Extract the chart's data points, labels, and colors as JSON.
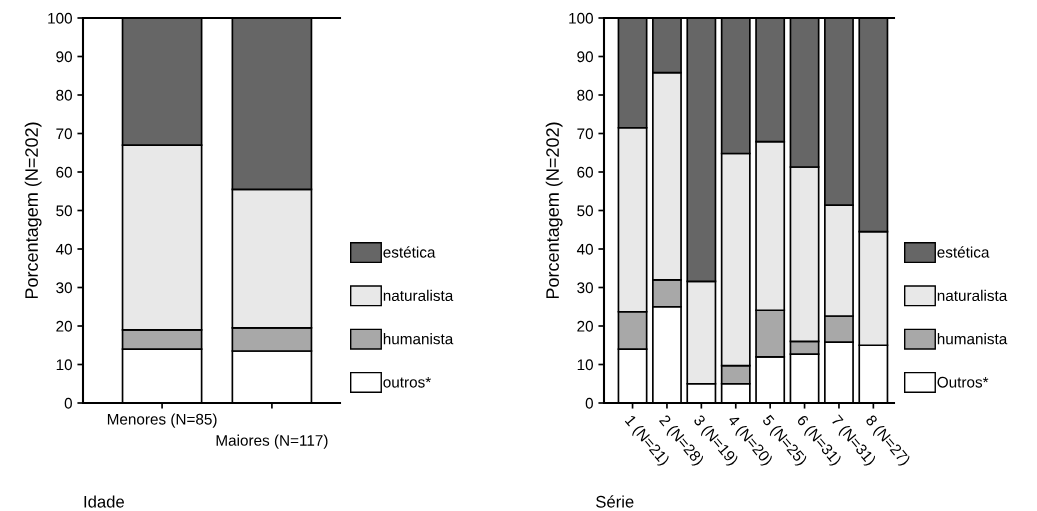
{
  "chart_data": [
    {
      "type": "bar",
      "stacked": true,
      "xlabel": "Idade",
      "ylabel": "Porcentagem (N=202)",
      "categories": [
        "Menores (N=85)",
        "Maiores (N=117)"
      ],
      "ylim": [
        0,
        100
      ],
      "yticks": [
        0,
        10,
        20,
        30,
        40,
        50,
        60,
        70,
        80,
        90,
        100
      ],
      "grid": false,
      "legend": "right",
      "series": [
        {
          "name": "outros*",
          "color": "#ffffff",
          "values": [
            14,
            13.5
          ]
        },
        {
          "name": "humanista",
          "color": "#a8a8a8",
          "values": [
            5,
            6
          ]
        },
        {
          "name": "naturalista",
          "color": "#e8e8e8",
          "values": [
            48,
            36
          ]
        },
        {
          "name": "estética",
          "color": "#666666",
          "values": [
            33,
            44.5
          ]
        }
      ]
    },
    {
      "type": "bar",
      "stacked": true,
      "xlabel": "Série",
      "ylabel": "Porcentagem (N=202)",
      "categories": [
        "1 (N=21)",
        "2 (N=28)",
        "3 (N=19)",
        "4 (N=20)",
        "5 (N=25)",
        "6 (N=31)",
        "7 (N=31)",
        "8 (N=27)"
      ],
      "ylim": [
        0,
        100
      ],
      "yticks": [
        0,
        10,
        20,
        30,
        40,
        50,
        60,
        70,
        80,
        90,
        100
      ],
      "grid": false,
      "legend": "right",
      "series": [
        {
          "name": "Outros*",
          "color": "#ffffff",
          "values": [
            14,
            25,
            5,
            5,
            12,
            12.7,
            15.8,
            15
          ]
        },
        {
          "name": "humanista",
          "color": "#a8a8a8",
          "values": [
            9.7,
            7,
            0,
            4.7,
            12.1,
            3.3,
            6.8,
            0
          ]
        },
        {
          "name": "naturalista",
          "color": "#e8e8e8",
          "values": [
            47.8,
            53.8,
            26.6,
            55.1,
            43.8,
            45.3,
            28.8,
            29.5
          ]
        },
        {
          "name": "estética",
          "color": "#666666",
          "values": [
            28.5,
            14.2,
            68.4,
            35.2,
            32.1,
            38.7,
            48.6,
            55.5
          ]
        }
      ]
    }
  ]
}
